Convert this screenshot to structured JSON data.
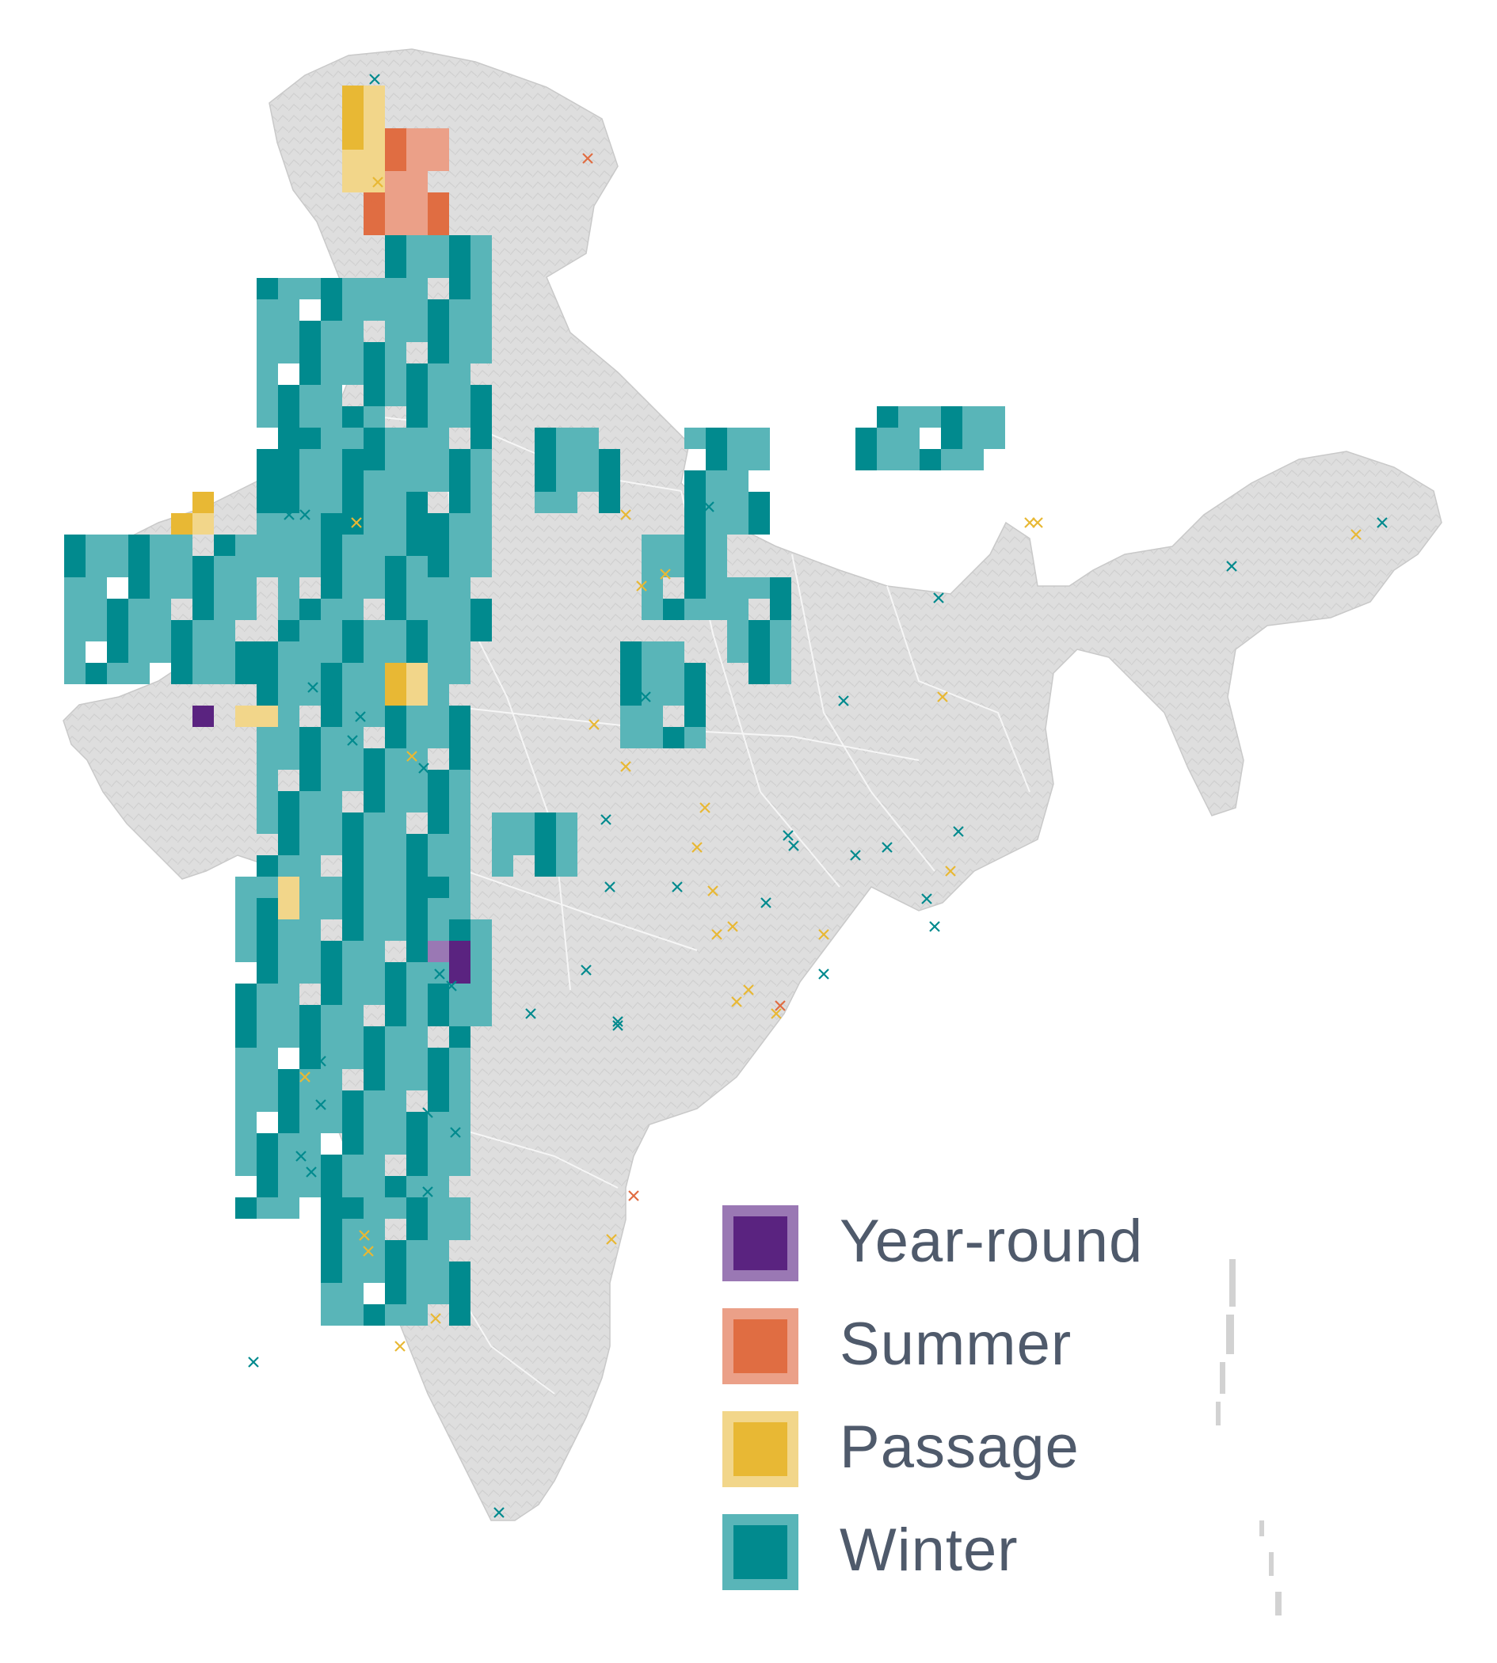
{
  "legend": {
    "items": [
      {
        "label": "Year-round",
        "color": "#5a2380",
        "light": "#9a78b4"
      },
      {
        "label": "Summer",
        "color": "#e06d42",
        "light": "#eba088"
      },
      {
        "label": "Passage",
        "color": "#e8b834",
        "light": "#f2d68a"
      },
      {
        "label": "Winter",
        "color": "#018a8e",
        "light": "#59b5b8"
      }
    ]
  },
  "colors": {
    "land": "#dcdcdc",
    "land_shade": "#cfcfcf",
    "borders": "#f4f4f4",
    "background": "#ffffff"
  }
}
